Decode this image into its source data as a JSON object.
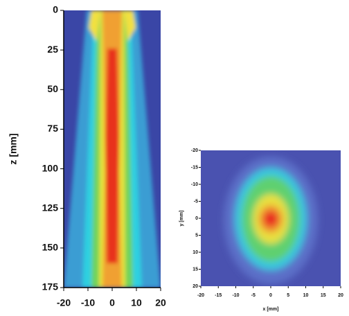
{
  "chart_data": [
    {
      "type": "heatmap",
      "y_label": "z [mm]",
      "xlim": [
        -20,
        20
      ],
      "xticks": [
        -20,
        -10,
        0,
        10,
        20
      ],
      "ylim": [
        0,
        175
      ],
      "yticks": [
        0,
        25,
        50,
        75,
        100,
        125,
        150,
        175
      ],
      "y_inverted": true
    },
    {
      "type": "heatmap",
      "x_label": "x [mm]",
      "y_label": "y [mm]",
      "xlim": [
        -20,
        20
      ],
      "xticks": [
        -20,
        -15,
        -10,
        -5,
        0,
        5,
        10,
        15,
        20
      ],
      "ylim": [
        -20,
        20
      ],
      "yticks": [
        -20,
        -15,
        -10,
        -5,
        0,
        5,
        10,
        15,
        20
      ],
      "y_inverted": true
    }
  ]
}
